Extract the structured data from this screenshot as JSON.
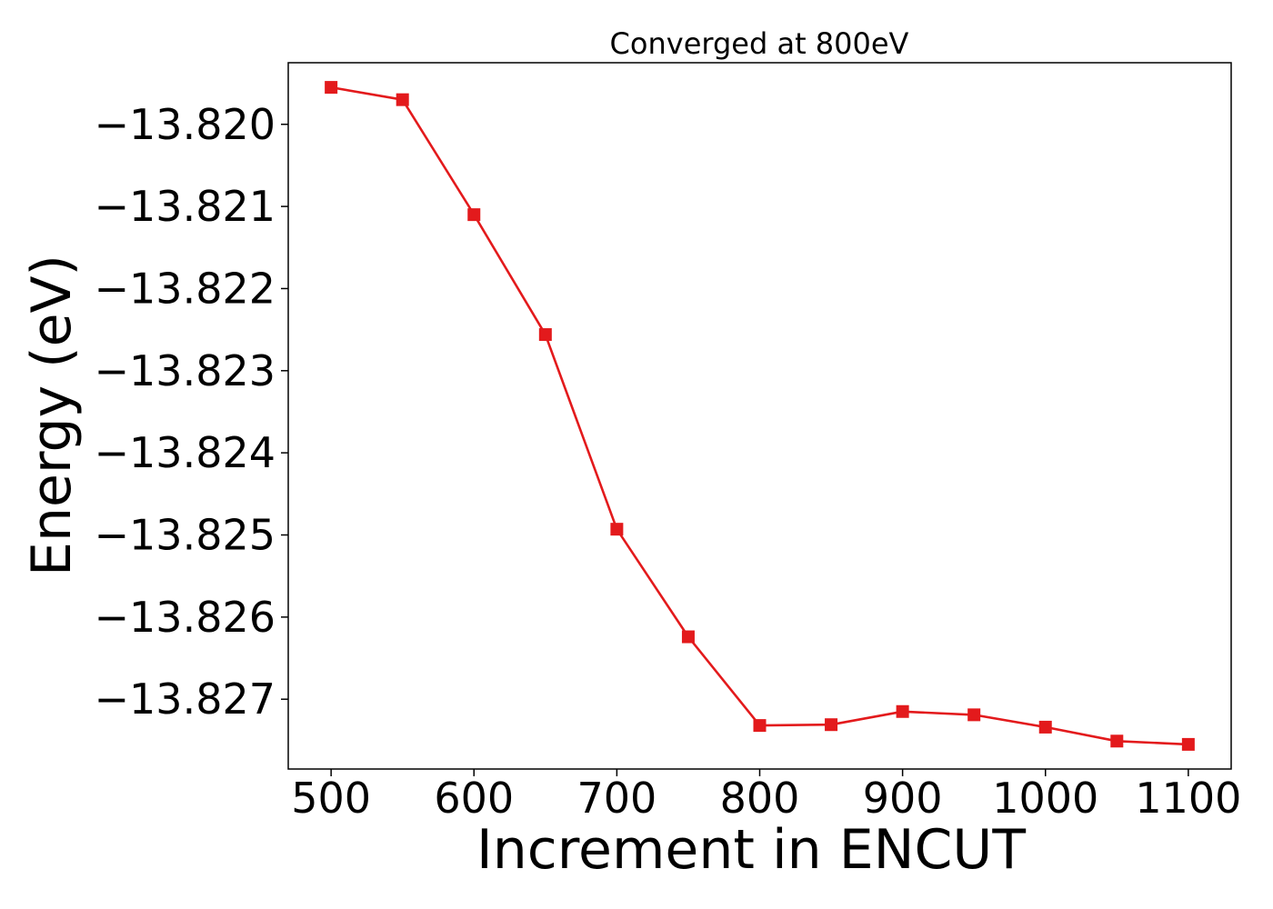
{
  "chart_data": {
    "type": "line",
    "title": "Converged at 800eV",
    "xlabel": "Increment in ENCUT",
    "ylabel": "Energy (eV)",
    "xlim": [
      470,
      1130
    ],
    "ylim": [
      -13.82785,
      -13.81925
    ],
    "x_ticks": [
      500,
      600,
      700,
      800,
      900,
      1000,
      1100
    ],
    "y_ticks": [
      -13.82,
      -13.821,
      -13.822,
      -13.823,
      -13.824,
      -13.825,
      -13.826,
      -13.827
    ],
    "y_tick_labels": [
      "−13.820",
      "−13.821",
      "−13.822",
      "−13.823",
      "−13.824",
      "−13.825",
      "−13.826",
      "−13.827"
    ],
    "grid": false,
    "series": [
      {
        "color": "#e31a1c",
        "marker": "square",
        "x": [
          500,
          550,
          600,
          650,
          700,
          750,
          800,
          850,
          900,
          950,
          1000,
          1050,
          1100
        ],
        "y": [
          -13.81955,
          -13.8197,
          -13.8211,
          -13.82256,
          -13.82493,
          -13.82624,
          -13.82732,
          -13.82731,
          -13.82715,
          -13.82719,
          -13.82734,
          -13.82751,
          -13.82755
        ]
      }
    ]
  }
}
